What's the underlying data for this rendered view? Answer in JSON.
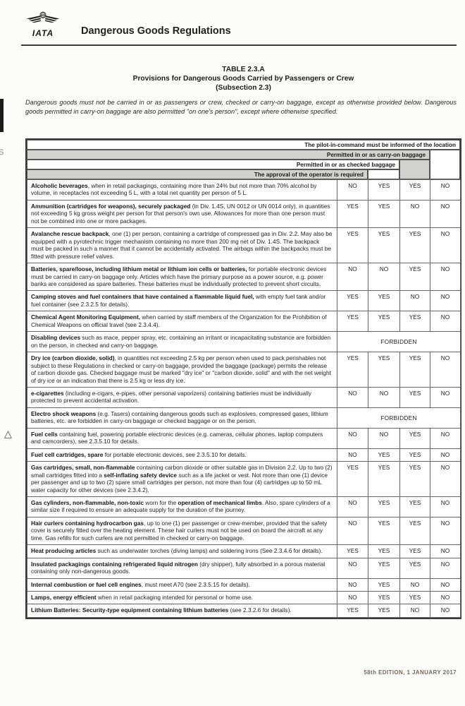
{
  "brand": {
    "logo_text": "IATA",
    "title": "Dangerous Goods Regulations"
  },
  "table_title": {
    "line1": "TABLE 2.3.A",
    "line2": "Provisions for Dangerous Goods Carried by Passengers or Crew",
    "line3": "(Subsection 2.3)"
  },
  "intro": "Dangerous goods must not be carried in or as passengers or crew, checked or carry-on baggage, except as otherwise provided below. Dangerous goods permitted in carry-on baggage are also permitted \"on one's person\", except where otherwise specified.",
  "edge_letter": "S",
  "footer": "58th EDITION, 1 JANUARY 2017",
  "colors": {
    "header_band_gray": "#d2d2d0",
    "table_border": "#555555",
    "footer_text": "#756a66"
  },
  "table": {
    "headers": {
      "pilot": "The pilot-in-command must be informed of the location",
      "carry_on": "Permitted in or as carry-on baggage",
      "checked": "Permitted in or as checked baggage",
      "operator": "The approval of the operator is required"
    },
    "value_column_keys": [
      "operator-approval",
      "checked-baggage",
      "carry-on-baggage",
      "pilot-informed"
    ],
    "forbidden_label": "FORBIDDEN",
    "change_marker_glyph": "△",
    "rows": [
      {
        "segments": [
          {
            "b": 1,
            "t": "Alcoholic beverages"
          },
          {
            "b": 0,
            "t": ", when in retail packagings, containing more than 24% but not more than 70% alcohol by volume, in receptacles not exceeding 5 L, with a total net quantity per person of 5 L."
          }
        ],
        "values": [
          "NO",
          "YES",
          "YES",
          "NO"
        ]
      },
      {
        "segments": [
          {
            "b": 1,
            "t": "Ammunition (cartridges for weapons), securely packaged "
          },
          {
            "b": 0,
            "t": "(in Div. 1.4S, UN 0012 or UN 0014 only), in quantities not exceeding 5 kg gross weight per person for that person's own use. Allowances for more than one person must not be combined into one or more packages."
          }
        ],
        "values": [
          "YES",
          "YES",
          "NO",
          "NO"
        ]
      },
      {
        "segments": [
          {
            "b": 1,
            "t": "Avalanche rescue backpack"
          },
          {
            "b": 0,
            "t": ", one (1) per person, containing a cartridge of compressed gas in Div. 2.2. May also be equipped with a pyrotechnic trigger mechanism containing no more than 200 mg net of Div. 1.4S. The backpack must be packed in such a manner that it cannot be accidentally activated. The airbags within the backpacks must be fitted with pressure relief valves."
          }
        ],
        "values": [
          "YES",
          "YES",
          "YES",
          "NO"
        ]
      },
      {
        "segments": [
          {
            "b": 1,
            "t": "Batteries, spare/loose, including lithium metal or lithium ion cells or batteries, "
          },
          {
            "b": 0,
            "t": "for portable electronic devices must be carried in carry-on baggage only. Articles which have the primary purpose as a power source, e.g. power banks are considered as spare batteries. These batteries must be individually protected to prevent short circuits."
          }
        ],
        "values": [
          "NO",
          "NO",
          "YES",
          "NO"
        ]
      },
      {
        "segments": [
          {
            "b": 1,
            "t": "Camping stoves and fuel containers that have contained a flammable liquid fuel, "
          },
          {
            "b": 0,
            "t": "with empty fuel tank and/or fuel container (see 2.3.2.5 for details)."
          }
        ],
        "values": [
          "YES",
          "YES",
          "NO",
          "NO"
        ]
      },
      {
        "segments": [
          {
            "b": 1,
            "t": "Chemical Agent Monitoring Equipment, "
          },
          {
            "b": 0,
            "t": "when carried by staff members of the Organization for the Prohibition of Chemical Weapons on official travel (see 2.3.4.4)."
          }
        ],
        "values": [
          "YES",
          "YES",
          "YES",
          "NO"
        ]
      },
      {
        "segments": [
          {
            "b": 1,
            "t": "Disabling devices "
          },
          {
            "b": 0,
            "t": "such as mace, pepper spray, etc. containing an irritant or incapacitating substance are forbidden on the person, in checked and carry-on baggage."
          }
        ],
        "forbidden": true
      },
      {
        "segments": [
          {
            "b": 1,
            "t": "Dry ice (carbon dioxide, solid)"
          },
          {
            "b": 0,
            "t": ", in quantities not exceeding 2.5 kg per person when used to pack perishables not subject to these Regulations in checked or carry-on baggage, provided the baggage (package) permits the release of carbon dioxide gas. Checked baggage must be marked \"dry ice\" or \"carbon dioxide, solid\" and with the net weight of dry ice or an indication that there is 2.5 kg or less dry ice."
          }
        ],
        "values": [
          "YES",
          "YES",
          "YES",
          "NO"
        ]
      },
      {
        "segments": [
          {
            "b": 1,
            "t": "e-cigarettes "
          },
          {
            "b": 0,
            "t": "(including e-cigars, e-pipes, other personal vaporizers) containing batteries must be individually protected to prevent accidental activation."
          }
        ],
        "values": [
          "NO",
          "NO",
          "YES",
          "NO"
        ]
      },
      {
        "segments": [
          {
            "b": 1,
            "t": "Electro shock weapons "
          },
          {
            "b": 0,
            "t": "(e.g. Tasers) containing dangerous goods such as explosives, compressed gases, lithium batteries, etc. are forbidden in carry-on baggage or checked baggage or on the person."
          }
        ],
        "forbidden": true
      },
      {
        "change_marker": true,
        "segments": [
          {
            "b": 1,
            "t": "Fuel cells "
          },
          {
            "b": 0,
            "t": "containing fuel, powering portable electronic devices (e.g. cameras, cellular phones, laptop computers and camcorders), see 2.3.5.10 for details."
          }
        ],
        "values": [
          "NO",
          "NO",
          "YES",
          "NO"
        ]
      },
      {
        "segments": [
          {
            "b": 1,
            "t": "Fuel cell cartridges, spare "
          },
          {
            "b": 0,
            "t": "for portable electronic devices, see 2.3.5.10 for details."
          }
        ],
        "values": [
          "NO",
          "YES",
          "YES",
          "NO"
        ]
      },
      {
        "segments": [
          {
            "b": 1,
            "t": "Gas cartridges, small, non-flammable "
          },
          {
            "b": 0,
            "t": "containing carbon dioxide or other suitable gas in Division 2.2. Up to two (2) small cartridges fitted into a "
          },
          {
            "b": 1,
            "t": "self-inflating safety device "
          },
          {
            "b": 0,
            "t": "such as a life jacket or vest. Not more than one (1) device per passenger and up to two (2) spare small cartridges per person, not more than four (4) cartridges up to 50 mL water capacity for other devices (see 2.3.4.2)."
          }
        ],
        "values": [
          "YES",
          "YES",
          "YES",
          "NO"
        ]
      },
      {
        "segments": [
          {
            "b": 1,
            "t": "Gas cylinders, non-flammable, non-toxic "
          },
          {
            "b": 0,
            "t": "worn for the "
          },
          {
            "b": 1,
            "t": "operation of mechanical limbs"
          },
          {
            "b": 0,
            "t": ". Also, spare cylinders of a similar size if required to ensure an adequate supply for the duration of the journey."
          }
        ],
        "values": [
          "NO",
          "YES",
          "YES",
          "NO"
        ]
      },
      {
        "segments": [
          {
            "b": 1,
            "t": "Hair curlers containing hydrocarbon gas"
          },
          {
            "b": 0,
            "t": ", up to one (1) per passenger or crew-member, provided that the safety cover is securely fitted over the heating element. These hair curlers must not be used on board the aircraft at any time. Gas refills for such curlers are not permitted in checked or carry-on baggage."
          }
        ],
        "values": [
          "NO",
          "YES",
          "YES",
          "NO"
        ]
      },
      {
        "segments": [
          {
            "b": 1,
            "t": "Heat producing articles "
          },
          {
            "b": 0,
            "t": "such as underwater torches (diving lamps) and soldering irons (See 2.3.4.6 for details)."
          }
        ],
        "values": [
          "YES",
          "YES",
          "YES",
          "NO"
        ]
      },
      {
        "segments": [
          {
            "b": 1,
            "t": "Insulated packagings containing refrigerated liquid nitrogen "
          },
          {
            "b": 0,
            "t": "(dry shipper), fully absorbed in a porous material containing only non-dangerous goods."
          }
        ],
        "values": [
          "NO",
          "YES",
          "YES",
          "NO"
        ]
      },
      {
        "segments": [
          {
            "b": 1,
            "t": "Internal combustion or fuel cell engines"
          },
          {
            "b": 0,
            "t": ", must meet A70 (see 2.3.5.15 for details)."
          }
        ],
        "values": [
          "NO",
          "YES",
          "NO",
          "NO"
        ]
      },
      {
        "segments": [
          {
            "b": 1,
            "t": "Lamps, energy efficient "
          },
          {
            "b": 0,
            "t": "when in retail packaging intended for personal or home use."
          }
        ],
        "values": [
          "NO",
          "YES",
          "YES",
          "NO"
        ]
      },
      {
        "segments": [
          {
            "b": 1,
            "t": "Lithium Batteries: Security-type equipment containing lithium batteries "
          },
          {
            "b": 0,
            "t": "(see 2.3.2.6 for details)."
          }
        ],
        "values": [
          "YES",
          "YES",
          "NO",
          "NO"
        ]
      }
    ]
  }
}
